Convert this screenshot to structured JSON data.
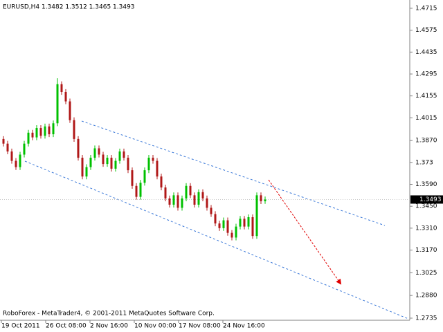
{
  "chart_data": {
    "type": "candlestick",
    "title": "EURUSD,H4  1.3482 1.3512 1.3465 1.3493",
    "footer": "RoboForex - MetaTrader4, © 2001-2011 MetaQuotes Software Corp.",
    "xtick_labels": [
      "19 Oct 2011",
      "26 Oct 08:00",
      "2 Nov 16:00",
      "10 Nov 00:00",
      "17 Nov 08:00",
      "24 Nov 16:00"
    ],
    "ylim": [
      1.2726,
      1.4759
    ],
    "yticks": [
      1.4715,
      1.4575,
      1.4435,
      1.4295,
      1.4155,
      1.4015,
      {
        "value": 1.387,
        "label": "1.3870"
      },
      1.373,
      {
        "value": 1.359,
        "label": "1.3590"
      },
      {
        "value": 1.345,
        "label": "1.3450"
      },
      {
        "value": 1.331,
        "label": "1.3310"
      },
      {
        "value": 1.317,
        "label": "1.3170"
      },
      1.3025,
      {
        "value": 1.288,
        "label": "1.2880"
      },
      1.2735
    ],
    "current_price": 1.3493,
    "up_color": "#00c000",
    "down_color": "#b01818",
    "open": [
      1.388,
      1.385,
      1.38,
      1.374,
      1.37,
      1.378,
      1.385,
      1.392,
      1.389,
      1.395,
      1.39,
      1.396,
      1.391,
      1.398,
      1.423,
      1.418,
      1.412,
      1.4,
      1.388,
      1.376,
      1.364,
      1.37,
      1.376,
      1.382,
      1.378,
      1.372,
      1.376,
      1.369,
      1.374,
      1.38,
      1.376,
      1.368,
      1.358,
      1.351,
      1.36,
      1.368,
      1.376,
      1.374,
      1.364,
      1.357,
      1.35,
      1.346,
      1.352,
      1.344,
      1.35,
      1.358,
      1.352,
      1.346,
      1.354,
      1.35,
      1.344,
      1.34,
      1.334,
      1.331,
      1.336,
      1.328,
      1.325,
      1.332,
      1.337,
      1.332,
      1.338,
      1.326,
      1.352,
      1.3482
    ],
    "high": [
      1.3898,
      1.3868,
      1.3818,
      1.3758,
      1.3798,
      1.3868,
      1.3938,
      1.3938,
      1.3968,
      1.3968,
      1.3978,
      1.3978,
      1.3998,
      1.4268,
      1.4248,
      1.4198,
      1.4138,
      1.4018,
      1.3898,
      1.3778,
      1.3718,
      1.3778,
      1.3838,
      1.3838,
      1.3798,
      1.3778,
      1.3778,
      1.3758,
      1.3818,
      1.3818,
      1.3778,
      1.3698,
      1.3598,
      1.3618,
      1.3698,
      1.3778,
      1.3778,
      1.3758,
      1.3658,
      1.3588,
      1.3518,
      1.3538,
      1.3538,
      1.3518,
      1.3598,
      1.3598,
      1.3538,
      1.3558,
      1.3558,
      1.3518,
      1.3458,
      1.3418,
      1.3358,
      1.3378,
      1.3378,
      1.3298,
      1.3338,
      1.3388,
      1.3388,
      1.3398,
      1.3398,
      1.3538,
      1.3538,
      1.3512
    ],
    "low": [
      1.3832,
      1.3782,
      1.3722,
      1.3682,
      1.3682,
      1.3762,
      1.3832,
      1.3872,
      1.3872,
      1.3882,
      1.3882,
      1.3892,
      1.3892,
      1.3962,
      1.4162,
      1.4102,
      1.3982,
      1.3862,
      1.3742,
      1.3622,
      1.3622,
      1.3682,
      1.3742,
      1.3762,
      1.3702,
      1.3702,
      1.3672,
      1.3672,
      1.3722,
      1.3742,
      1.3662,
      1.3562,
      1.3492,
      1.3492,
      1.3582,
      1.3662,
      1.3722,
      1.3622,
      1.3552,
      1.3482,
      1.3442,
      1.3442,
      1.3422,
      1.3422,
      1.3482,
      1.3502,
      1.3442,
      1.3442,
      1.3482,
      1.3422,
      1.3382,
      1.3322,
      1.3292,
      1.3292,
      1.3262,
      1.3232,
      1.3232,
      1.3302,
      1.3302,
      1.3302,
      1.3242,
      1.3242,
      1.3464,
      1.3465
    ],
    "close": [
      1.385,
      1.38,
      1.374,
      1.37,
      1.378,
      1.385,
      1.392,
      1.389,
      1.395,
      1.39,
      1.396,
      1.391,
      1.398,
      1.423,
      1.418,
      1.412,
      1.4,
      1.388,
      1.376,
      1.364,
      1.37,
      1.376,
      1.382,
      1.378,
      1.372,
      1.376,
      1.369,
      1.374,
      1.38,
      1.376,
      1.368,
      1.358,
      1.351,
      1.36,
      1.368,
      1.376,
      1.374,
      1.364,
      1.357,
      1.35,
      1.346,
      1.352,
      1.344,
      1.35,
      1.358,
      1.352,
      1.346,
      1.354,
      1.35,
      1.344,
      1.34,
      1.334,
      1.331,
      1.336,
      1.328,
      1.325,
      1.332,
      1.337,
      1.332,
      1.338,
      1.326,
      1.352,
      1.3482,
      1.3493
    ]
  }
}
